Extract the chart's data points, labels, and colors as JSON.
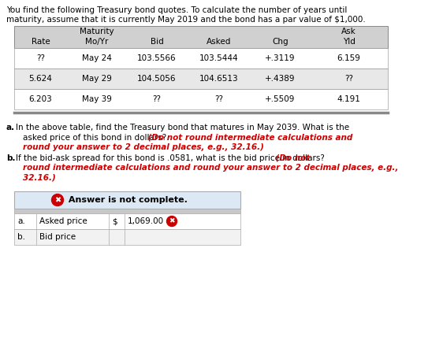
{
  "title_line1": "You find the following Treasury bond quotes. To calculate the number of years until",
  "title_line2": "maturity, assume that it is currently May 2019 and the bond has a par value of $1,000.",
  "table_headers_row1": [
    "",
    "Maturity",
    "",
    "",
    "",
    "Ask"
  ],
  "table_headers_row2": [
    "Rate",
    "Mo/Yr",
    "Bid",
    "Asked",
    "Chg",
    "Yld"
  ],
  "table_rows": [
    [
      "??",
      "May 24",
      "103.5566",
      "103.5444",
      "+.3119",
      "6.159"
    ],
    [
      "5.624",
      "May 29",
      "104.5056",
      "104.6513",
      "+.4389",
      "??"
    ],
    [
      "6.203",
      "May 39",
      "??",
      "??",
      "+.5509",
      "4.191"
    ]
  ],
  "bg_color": "#ffffff",
  "table_header_bg": "#d0d0d0",
  "table_row_bg_odd": "#ffffff",
  "table_row_bg_even": "#e8e8e8",
  "table_border": "#888888",
  "red_color": "#cc0000",
  "x_icon_color": "#cc0000",
  "answer_box_bg": "#dce9f5",
  "answer_box_border": "#aaaaaa"
}
